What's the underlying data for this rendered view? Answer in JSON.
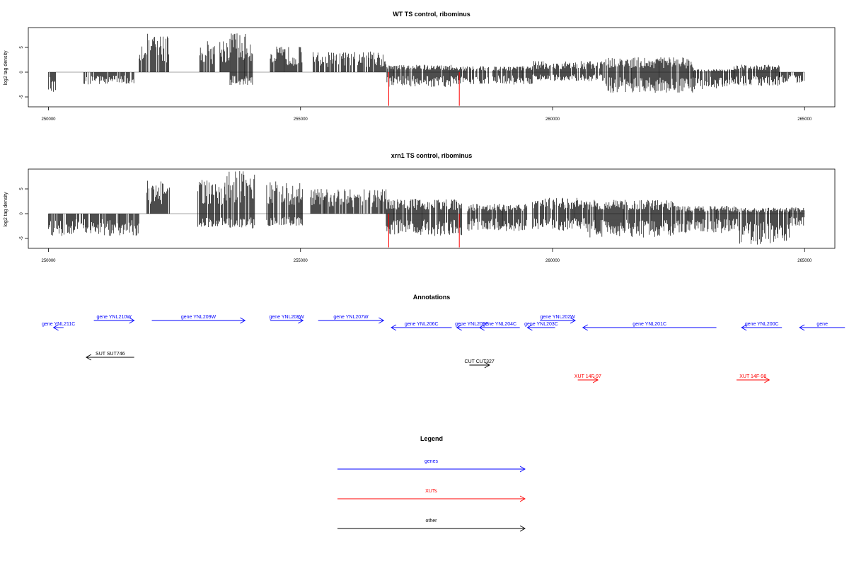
{
  "colors": {
    "gene": "#0000ff",
    "xut": "#ff0000",
    "other": "#000000",
    "axis": "#000000",
    "zero": "#888888",
    "highlight": "#ff0000"
  },
  "chart_data": [
    {
      "type": "bar",
      "title": "WT TS control, ribominus",
      "ylabel": "log2 tag density",
      "xlim": [
        249600,
        265600
      ],
      "ylim": [
        -7,
        9
      ],
      "xticks": [
        250000,
        255000,
        260000,
        265000
      ],
      "xtick_labels": [
        "250000",
        "255000",
        "260000",
        "265000"
      ],
      "yticks": [
        5,
        0,
        -5
      ],
      "ytick_labels": [
        "5",
        "0",
        "-5"
      ],
      "segments": [
        {
          "x0": 250000,
          "x1": 250150,
          "min": -4,
          "max": 0
        },
        {
          "x0": 250700,
          "x1": 251700,
          "min": -2.5,
          "max": 0
        },
        {
          "x0": 251800,
          "x1": 252400,
          "min": 0,
          "max": 7.8
        },
        {
          "x0": 253000,
          "x1": 253300,
          "min": 0,
          "max": 6.5
        },
        {
          "x0": 253400,
          "x1": 253600,
          "min": 0,
          "max": 7
        },
        {
          "x0": 253600,
          "x1": 254050,
          "min": -2.6,
          "max": 8.2
        },
        {
          "x0": 254400,
          "x1": 255050,
          "min": 0,
          "max": 5.2
        },
        {
          "x0": 255250,
          "x1": 256700,
          "min": 0,
          "max": 4.2
        },
        {
          "x0": 256700,
          "x1": 258000,
          "min": -3,
          "max": 1.5
        },
        {
          "x0": 258000,
          "x1": 259600,
          "min": -2.5,
          "max": 1.2
        },
        {
          "x0": 259600,
          "x1": 261000,
          "min": -1.8,
          "max": 2.3
        },
        {
          "x0": 261000,
          "x1": 262800,
          "min": -4.2,
          "max": 3
        },
        {
          "x0": 262800,
          "x1": 263600,
          "min": -3.6,
          "max": 0.6
        },
        {
          "x0": 263600,
          "x1": 264500,
          "min": -2.8,
          "max": 1.5
        },
        {
          "x0": 264500,
          "x1": 265000,
          "min": -2.2,
          "max": 0
        }
      ],
      "highlights": [
        {
          "x": 256750,
          "y": -6.8
        },
        {
          "x": 258150,
          "y": -6.8
        }
      ]
    },
    {
      "type": "bar",
      "title": "xrn1 TS control, ribominus",
      "ylabel": "log2 tag density",
      "xlim": [
        249600,
        265600
      ],
      "ylim": [
        -7,
        9
      ],
      "xticks": [
        250000,
        255000,
        260000,
        265000
      ],
      "xtick_labels": [
        "250000",
        "255000",
        "260000",
        "265000"
      ],
      "yticks": [
        5,
        0,
        -5
      ],
      "ytick_labels": [
        "5",
        "0",
        "-5"
      ],
      "segments": [
        {
          "x0": 250000,
          "x1": 251800,
          "min": -4.5,
          "max": 0
        },
        {
          "x0": 251950,
          "x1": 252400,
          "min": 0,
          "max": 6.8
        },
        {
          "x0": 252950,
          "x1": 253500,
          "min": -3,
          "max": 6.8
        },
        {
          "x0": 253500,
          "x1": 254100,
          "min": -3,
          "max": 8.6
        },
        {
          "x0": 254300,
          "x1": 255050,
          "min": -2.5,
          "max": 6.8
        },
        {
          "x0": 255200,
          "x1": 256700,
          "min": 0,
          "max": 5
        },
        {
          "x0": 256700,
          "x1": 258200,
          "min": -4.5,
          "max": 3
        },
        {
          "x0": 258300,
          "x1": 259500,
          "min": -3.5,
          "max": 2
        },
        {
          "x0": 259600,
          "x1": 260700,
          "min": -3.6,
          "max": 3.2
        },
        {
          "x0": 260700,
          "x1": 262400,
          "min": -4.8,
          "max": 2.8
        },
        {
          "x0": 262400,
          "x1": 263700,
          "min": -4,
          "max": 1.6
        },
        {
          "x0": 263700,
          "x1": 264700,
          "min": -6.3,
          "max": 1.2
        },
        {
          "x0": 264700,
          "x1": 265000,
          "min": -2.5,
          "max": 1.3
        }
      ],
      "highlights": [
        {
          "x": 256750,
          "y": -6.8
        },
        {
          "x": 258150,
          "y": -6.8
        }
      ]
    }
  ],
  "annotations": {
    "title": "Annotations",
    "features": [
      {
        "label": "gene YNL211C",
        "kind": "gene",
        "strand": "-",
        "start": 250100,
        "end": 250300,
        "row": 1
      },
      {
        "label": "gene YNL210W",
        "kind": "gene",
        "strand": "+",
        "start": 250900,
        "end": 251700,
        "row": 0
      },
      {
        "label": "gene YNL209W",
        "kind": "gene",
        "strand": "+",
        "start": 252050,
        "end": 253900,
        "row": 0
      },
      {
        "label": "gene YNL208W",
        "kind": "gene",
        "strand": "+",
        "start": 254400,
        "end": 255050,
        "row": 0
      },
      {
        "label": "gene YNL207W",
        "kind": "gene",
        "strand": "+",
        "start": 255350,
        "end": 256650,
        "row": 0
      },
      {
        "label": "gene YNL206C",
        "kind": "gene",
        "strand": "-",
        "start": 256800,
        "end": 258000,
        "row": 1
      },
      {
        "label": "gene YNL205C",
        "kind": "gene",
        "strand": "-",
        "start": 258100,
        "end": 258700,
        "row": 1
      },
      {
        "label": "gene YNL204C",
        "kind": "gene",
        "strand": "-",
        "start": 258550,
        "end": 259350,
        "row": 1
      },
      {
        "label": "gene YNL203C",
        "kind": "gene",
        "strand": "-",
        "start": 259500,
        "end": 260050,
        "row": 1
      },
      {
        "label": "gene YNL202W",
        "kind": "gene",
        "strand": "+",
        "start": 259750,
        "end": 260450,
        "row": 0
      },
      {
        "label": "gene YNL201C",
        "kind": "gene",
        "strand": "-",
        "start": 260600,
        "end": 263250,
        "row": 1
      },
      {
        "label": "gene YNL200C",
        "kind": "gene",
        "strand": "-",
        "start": 263750,
        "end": 264550,
        "row": 1
      },
      {
        "label": "gene",
        "kind": "gene",
        "strand": "-",
        "start": 264900,
        "end": 265800,
        "row": 1
      },
      {
        "label": "SUT SUT746",
        "kind": "other",
        "strand": "-",
        "start": 250750,
        "end": 251700,
        "row": 2
      },
      {
        "label": "CUT CUT327",
        "kind": "other",
        "strand": "+",
        "start": 258350,
        "end": 258750,
        "row": 3
      },
      {
        "label": "XUT 14F-97",
        "kind": "xut",
        "strand": "+",
        "start": 260500,
        "end": 260900,
        "row": 4
      },
      {
        "label": "XUT 14F-98",
        "kind": "xut",
        "strand": "+",
        "start": 263650,
        "end": 264300,
        "row": 4
      }
    ]
  },
  "legend": {
    "title": "Legend",
    "items": [
      {
        "label": "genes",
        "kind": "gene"
      },
      {
        "label": "XUTs",
        "kind": "xut"
      },
      {
        "label": "other",
        "kind": "other"
      }
    ]
  }
}
